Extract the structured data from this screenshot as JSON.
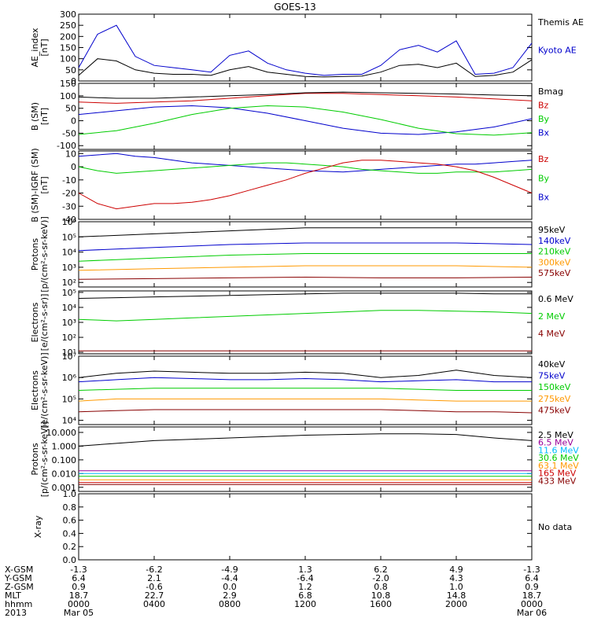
{
  "title": "GOES-13",
  "colors": {
    "black": "#000000",
    "blue": "#0000cc",
    "green": "#00cc00",
    "red": "#cc0000",
    "orange": "#ff9900",
    "darkred": "#880000",
    "cyan": "#00bbff",
    "purple": "#990099",
    "yellow": "#dddd00"
  },
  "footer": {
    "rows": [
      {
        "label": "X-GSM",
        "values": [
          "-1.3",
          "-6.2",
          "-4.9",
          "1.3",
          "6.2",
          "4.9",
          "-1.3"
        ]
      },
      {
        "label": "Y-GSM",
        "values": [
          "6.4",
          "2.1",
          "-4.4",
          "-6.4",
          "-2.0",
          "4.3",
          "6.4"
        ]
      },
      {
        "label": "Z-GSM",
        "values": [
          "0.9",
          "-0.6",
          "0.0",
          "1.2",
          "0.8",
          "1.0",
          "0.9"
        ]
      },
      {
        "label": "MLT",
        "values": [
          "18.7",
          "22.7",
          "2.9",
          "6.8",
          "10.8",
          "14.8",
          "18.7"
        ]
      },
      {
        "label": "hhmm",
        "values": [
          "0000",
          "0400",
          "0800",
          "1200",
          "1600",
          "2000",
          "0000"
        ]
      },
      {
        "label": "2013",
        "values": [
          "Mar 05",
          "",
          "",
          "",
          "",
          "",
          "Mar 06"
        ]
      }
    ]
  },
  "chart_data": [
    {
      "type": "line",
      "id": "ae",
      "ylabel": "AE_index\n[nT]",
      "yticks": [
        "300",
        "250",
        "200",
        "150",
        "100",
        "50",
        "0"
      ],
      "ylim": [
        0,
        300
      ],
      "scale": "linear",
      "x": [
        0,
        1,
        2,
        3,
        4,
        5,
        6,
        7,
        8,
        9,
        10,
        11,
        12,
        13,
        14,
        15,
        16,
        17,
        18,
        19,
        20,
        21,
        22,
        23,
        24
      ],
      "series": [
        {
          "name": "Kyoto AE",
          "color": "blue",
          "values": [
            60,
            210,
            250,
            110,
            70,
            60,
            50,
            40,
            115,
            135,
            80,
            50,
            35,
            25,
            30,
            30,
            70,
            140,
            160,
            130,
            180,
            30,
            35,
            60,
            170
          ]
        },
        {
          "name": "Themis AE",
          "color": "black",
          "values": [
            25,
            100,
            90,
            50,
            35,
            30,
            30,
            25,
            50,
            65,
            40,
            30,
            20,
            18,
            20,
            22,
            40,
            70,
            75,
            60,
            80,
            20,
            25,
            40,
            95
          ]
        }
      ]
    },
    {
      "type": "line",
      "id": "bsm",
      "ylabel": "B (SM)\n[nT]",
      "yticks": [
        "150",
        "100",
        "50",
        "0",
        "-50",
        "-100"
      ],
      "ylim": [
        -115,
        150
      ],
      "scale": "linear",
      "x": [
        0,
        2,
        4,
        6,
        8,
        10,
        12,
        14,
        16,
        18,
        20,
        22,
        24
      ],
      "series": [
        {
          "name": "Bx",
          "color": "blue",
          "values": [
            25,
            40,
            55,
            60,
            52,
            30,
            0,
            -30,
            -50,
            -55,
            -45,
            -25,
            8
          ]
        },
        {
          "name": "By",
          "color": "green",
          "values": [
            -55,
            -40,
            -10,
            25,
            50,
            60,
            55,
            35,
            5,
            -30,
            -52,
            -58,
            -48
          ]
        },
        {
          "name": "Bz",
          "color": "red",
          "values": [
            75,
            70,
            75,
            80,
            90,
            100,
            110,
            110,
            105,
            100,
            95,
            88,
            80
          ]
        },
        {
          "name": "Bmag",
          "color": "black",
          "values": [
            95,
            90,
            90,
            95,
            100,
            105,
            112,
            115,
            112,
            110,
            107,
            103,
            100
          ]
        }
      ]
    },
    {
      "type": "line",
      "id": "bigrf",
      "ylabel": "B (SM)-IGRF (SM)\n[nT]",
      "yticks": [
        "10",
        "0",
        "-10",
        "-20",
        "-30",
        "-40"
      ],
      "ylim": [
        -40,
        12
      ],
      "scale": "linear",
      "x": [
        0,
        1,
        2,
        3,
        4,
        5,
        6,
        7,
        8,
        9,
        10,
        11,
        12,
        13,
        14,
        15,
        16,
        17,
        18,
        19,
        20,
        21,
        22,
        23,
        24
      ],
      "series": [
        {
          "name": "Bx",
          "color": "blue",
          "values": [
            8,
            9,
            10,
            8,
            7,
            5,
            3,
            2,
            1,
            0,
            -1,
            -2,
            -3,
            -3.5,
            -4,
            -3,
            -2,
            -1,
            0,
            1,
            2,
            2,
            3,
            4,
            5
          ]
        },
        {
          "name": "By",
          "color": "green",
          "values": [
            0,
            -3,
            -5,
            -4,
            -3,
            -2,
            -1,
            0,
            1,
            2,
            3,
            3,
            2,
            1,
            0,
            -2,
            -3,
            -4,
            -5,
            -5,
            -4,
            -4,
            -4,
            -3,
            -2
          ]
        },
        {
          "name": "Bz",
          "color": "red",
          "values": [
            -20,
            -28,
            -32,
            -30,
            -28,
            -28,
            -27,
            -25,
            -22,
            -18,
            -14,
            -10,
            -5,
            -1,
            3,
            5,
            5,
            4,
            3,
            2,
            0,
            -3,
            -8,
            -14,
            -20
          ]
        }
      ]
    },
    {
      "type": "line",
      "id": "protons1",
      "ylabel": "Protons\n[p/(cm²-s-sr-keV)]",
      "yticks": [
        "10⁶",
        "10⁵",
        "10⁴",
        "10³",
        "10²"
      ],
      "ylim": [
        1.7,
        6
      ],
      "scale": "log",
      "x": [
        0,
        4,
        8,
        12,
        16,
        20,
        24
      ],
      "series": [
        {
          "name": "575keV",
          "color": "darkred",
          "values": [
            2.2,
            2.25,
            2.3,
            2.35,
            2.3,
            2.3,
            2.35
          ]
        },
        {
          "name": "300keV",
          "color": "orange",
          "values": [
            2.8,
            2.9,
            3.0,
            3.1,
            3.1,
            3.1,
            3.0
          ]
        },
        {
          "name": "210keV",
          "color": "green",
          "values": [
            3.4,
            3.6,
            3.8,
            3.9,
            3.9,
            3.9,
            3.9
          ]
        },
        {
          "name": "140keV",
          "color": "blue",
          "values": [
            4.1,
            4.3,
            4.5,
            4.6,
            4.6,
            4.6,
            4.5
          ]
        },
        {
          "name": "95keV",
          "color": "black",
          "values": [
            5.0,
            5.2,
            5.4,
            5.6,
            5.6,
            5.6,
            5.6
          ]
        }
      ]
    },
    {
      "type": "line",
      "id": "electrons1",
      "ylabel": "Electrons\n[e/(cm²-s-sr)]",
      "yticks": [
        "10⁵",
        "10⁴",
        "10³",
        "10²",
        "10¹"
      ],
      "ylim": [
        0.9,
        5.1
      ],
      "scale": "log",
      "x": [
        0,
        2,
        4,
        6,
        8,
        10,
        12,
        14,
        16,
        18,
        20,
        22,
        24
      ],
      "series": [
        {
          "name": "4 MeV",
          "color": "darkred",
          "values": [
            1.1,
            1.1,
            1.1,
            1.1,
            1.1,
            1.1,
            1.1,
            1.1,
            1.1,
            1.1,
            1.1,
            1.1,
            1.1
          ]
        },
        {
          "name": "2 MeV",
          "color": "green",
          "values": [
            3.2,
            3.1,
            3.2,
            3.3,
            3.4,
            3.5,
            3.6,
            3.7,
            3.8,
            3.8,
            3.75,
            3.7,
            3.6
          ]
        },
        {
          "name": "0.6 MeV",
          "color": "black",
          "values": [
            4.6,
            4.65,
            4.7,
            4.75,
            4.8,
            4.85,
            4.9,
            4.95,
            4.95,
            4.95,
            4.95,
            4.9,
            4.9
          ]
        }
      ]
    },
    {
      "type": "line",
      "id": "electrons2",
      "ylabel": "Electrons\n[e/(cm²-s-sr-keV)]",
      "yticks": [
        "10⁷",
        "10⁶",
        "10⁵",
        "10⁴"
      ],
      "ylim": [
        3.8,
        7
      ],
      "scale": "log",
      "x": [
        0,
        2,
        4,
        6,
        8,
        10,
        12,
        14,
        16,
        18,
        20,
        22,
        24
      ],
      "series": [
        {
          "name": "475keV",
          "color": "darkred",
          "values": [
            4.4,
            4.45,
            4.5,
            4.5,
            4.5,
            4.5,
            4.5,
            4.5,
            4.5,
            4.45,
            4.4,
            4.4,
            4.35
          ]
        },
        {
          "name": "275keV",
          "color": "orange",
          "values": [
            4.9,
            5.0,
            5.0,
            5.0,
            5.0,
            5.0,
            5.0,
            5.0,
            5.0,
            4.95,
            4.9,
            4.9,
            4.9
          ]
        },
        {
          "name": "150keV",
          "color": "green",
          "values": [
            5.4,
            5.45,
            5.5,
            5.5,
            5.5,
            5.5,
            5.5,
            5.5,
            5.5,
            5.45,
            5.4,
            5.4,
            5.4
          ]
        },
        {
          "name": "75keV",
          "color": "blue",
          "values": [
            5.8,
            5.9,
            6.0,
            5.95,
            5.9,
            5.9,
            5.95,
            5.9,
            5.8,
            5.85,
            5.9,
            5.8,
            5.8
          ]
        },
        {
          "name": "40keV",
          "color": "black",
          "values": [
            6.0,
            6.2,
            6.3,
            6.25,
            6.2,
            6.2,
            6.25,
            6.2,
            6.0,
            6.1,
            6.35,
            6.1,
            6.0
          ]
        }
      ]
    },
    {
      "type": "line",
      "id": "protons2",
      "ylabel": "Protons\n[p/(cm²-s-sr-keV)]",
      "yticks": [
        "10.000",
        "1.000",
        "0.100",
        "0.010",
        "0.001"
      ],
      "tickexp": [
        4,
        3,
        2,
        1,
        0
      ],
      "ylim": [
        -0.3,
        4.4
      ],
      "scale": "log",
      "x": [
        0,
        2,
        4,
        6,
        8,
        10,
        12,
        14,
        16,
        18,
        20,
        22,
        24
      ],
      "series": [
        {
          "name": "433 MeV",
          "color": "darkred",
          "values": [
            0.2,
            0.2,
            0.2,
            0.2,
            0.2,
            0.2,
            0.2,
            0.2,
            0.2,
            0.2,
            0.2,
            0.2,
            0.2
          ]
        },
        {
          "name": "165 MeV",
          "color": "red",
          "values": [
            0.35,
            0.35,
            0.35,
            0.35,
            0.35,
            0.35,
            0.35,
            0.35,
            0.35,
            0.35,
            0.35,
            0.35,
            0.35
          ]
        },
        {
          "name": "63.1 MeV",
          "color": "orange",
          "values": [
            0.55,
            0.55,
            0.55,
            0.55,
            0.55,
            0.55,
            0.55,
            0.55,
            0.55,
            0.55,
            0.55,
            0.55,
            0.55
          ]
        },
        {
          "name": "30.6 MeV",
          "color": "green",
          "values": [
            0.8,
            0.8,
            0.8,
            0.8,
            0.8,
            0.8,
            0.8,
            0.8,
            0.8,
            0.8,
            0.8,
            0.8,
            0.8
          ]
        },
        {
          "name": "11.6 MeV",
          "color": "cyan",
          "values": [
            1.0,
            1.0,
            1.0,
            1.0,
            1.0,
            1.0,
            1.0,
            1.0,
            1.0,
            1.0,
            1.0,
            1.0,
            1.0
          ]
        },
        {
          "name": "6.5 MeV",
          "color": "purple",
          "values": [
            1.2,
            1.2,
            1.2,
            1.2,
            1.2,
            1.2,
            1.2,
            1.2,
            1.2,
            1.2,
            1.2,
            1.2,
            1.2
          ]
        },
        {
          "name": "2.5 MeV",
          "color": "black",
          "values": [
            3.0,
            3.2,
            3.4,
            3.5,
            3.6,
            3.7,
            3.8,
            3.85,
            3.9,
            3.9,
            3.85,
            3.6,
            3.4
          ]
        }
      ]
    },
    {
      "type": "line",
      "id": "xray",
      "ylabel": "X-ray",
      "yticks": [
        "1.0",
        "0.8",
        "0.6",
        "0.4",
        "0.2",
        "0.0"
      ],
      "ylim": [
        0,
        1
      ],
      "scale": "linear",
      "x": [],
      "series": [],
      "note": "No data"
    }
  ]
}
